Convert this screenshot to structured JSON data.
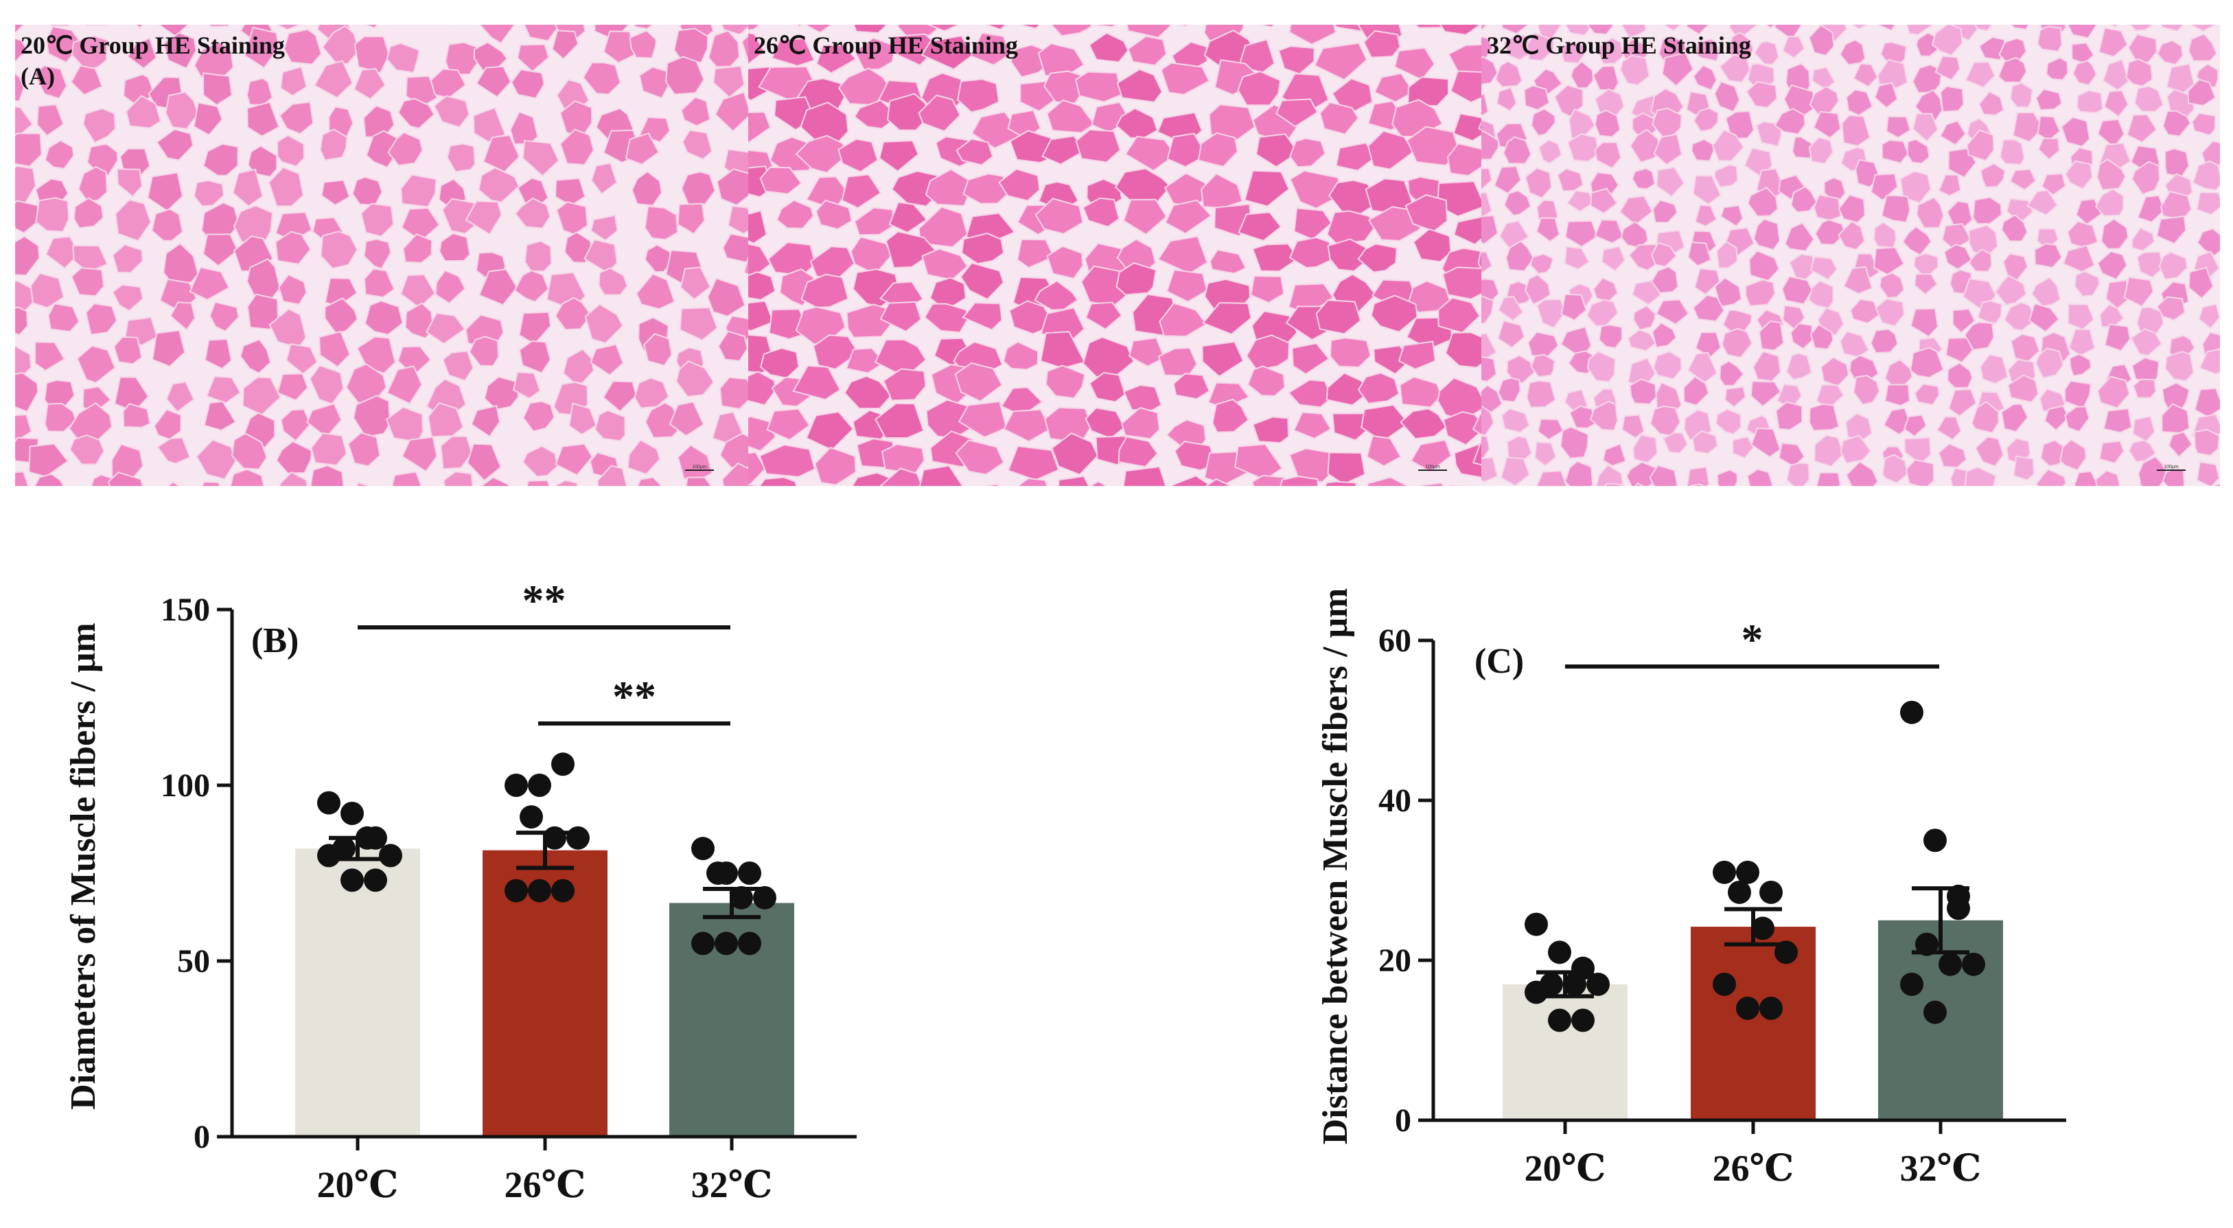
{
  "panels": [
    {
      "label": "20℃ Group HE Staining",
      "sublabel": "(A)",
      "scale_bar": "100μm"
    },
    {
      "label": "26℃ Group HE Staining",
      "sublabel": "",
      "scale_bar": "100μm"
    },
    {
      "label": "32℃ Group HE Staining",
      "sublabel": "",
      "scale_bar": "100μm"
    }
  ],
  "colors": {
    "bar_20": "#e6e3da",
    "bar_26": "#a52e1c",
    "bar_32": "#576f64",
    "tissue_base": "#ef86c2",
    "tissue_gap": "#f7e7f0",
    "dot": "#111111"
  },
  "chart_data": [
    {
      "type": "bar",
      "panel_label": "(B)",
      "ylabel": "Diameters of Muscle fibers / μm",
      "categories": [
        "20℃",
        "26℃",
        "32℃"
      ],
      "values": [
        82,
        81.5,
        66.5
      ],
      "sem": [
        3,
        5,
        4
      ],
      "points": [
        [
          95,
          92,
          85,
          82,
          85,
          80,
          80,
          73,
          73
        ],
        [
          100,
          100,
          106,
          91,
          85,
          85,
          70,
          70,
          70
        ],
        [
          82,
          75,
          75,
          75,
          68,
          68,
          55,
          55,
          55
        ]
      ],
      "ylim": [
        0,
        150
      ],
      "yticks": [
        0,
        50,
        100,
        150
      ],
      "significance": [
        {
          "from": 0,
          "to": 2,
          "label": "**"
        },
        {
          "from": 1,
          "to": 2,
          "label": "**"
        }
      ]
    },
    {
      "type": "bar",
      "panel_label": "(C)",
      "ylabel": "Distance between Muscle fibers / μm",
      "categories": [
        "20℃",
        "26℃",
        "32℃"
      ],
      "values": [
        17,
        24.2,
        25
      ],
      "sem": [
        1.5,
        2.2,
        4
      ],
      "points": [
        [
          24.5,
          21,
          19,
          17,
          17,
          17,
          16,
          12.5,
          12.5
        ],
        [
          31,
          31,
          28.5,
          28.5,
          24,
          21,
          17,
          14,
          14
        ],
        [
          51,
          35,
          26.5,
          22,
          19.5,
          19.5,
          17,
          13.5,
          28
        ]
      ],
      "ylim": [
        0,
        60
      ],
      "yticks": [
        0,
        20,
        40,
        60
      ],
      "significance": [
        {
          "from": 0,
          "to": 2,
          "label": "*"
        }
      ]
    }
  ]
}
